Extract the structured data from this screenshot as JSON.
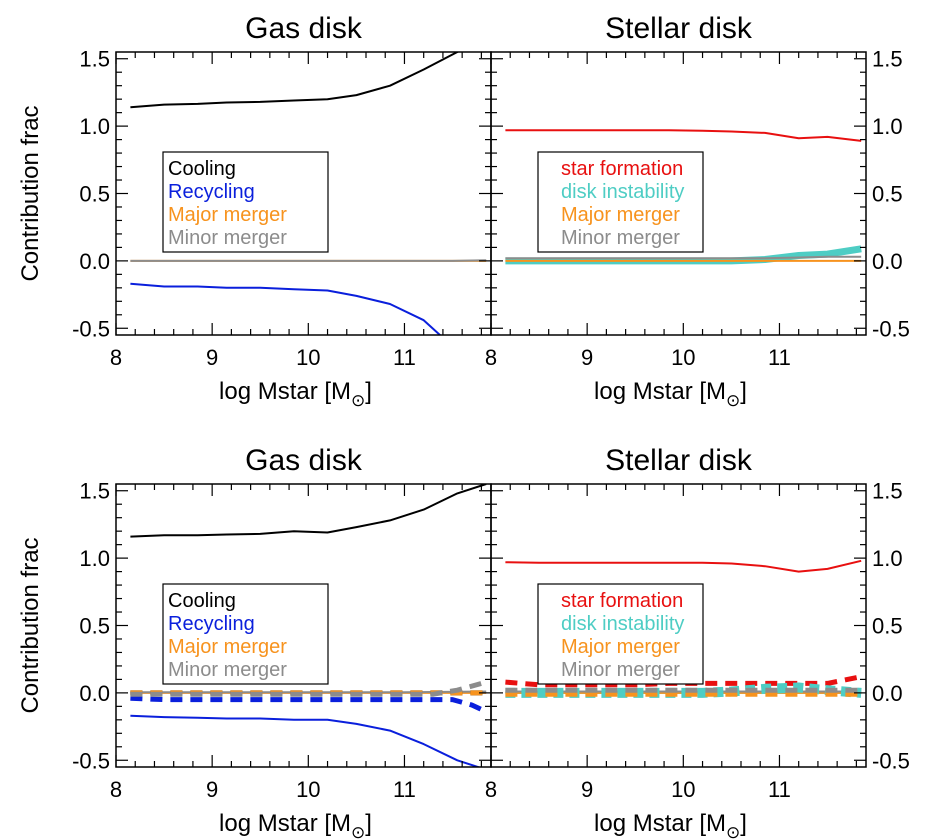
{
  "figure": {
    "ylabel": "Contribution frac",
    "xlabel": "log Mstar [M",
    "sun_symbol": "⊙",
    "bracket_close": "]"
  },
  "colors": {
    "Cooling": "#000000",
    "Recycling": "#0a1fdc",
    "Major merger": "#f7931e",
    "Minor merger": "#8c8c8c",
    "star formation": "#e81010",
    "disk instability": "#4ecdc4"
  },
  "chart_data": [
    {
      "type": "line",
      "title": "Gas disk",
      "xlabel": "log Mstar [M⊙]",
      "ylabel": "Contribution frac",
      "xlim": [
        8.0,
        11.9
      ],
      "ylim": [
        -0.55,
        1.55
      ],
      "x_ticks": [
        8,
        9,
        10,
        11
      ],
      "y_ticks": [
        "-0.5",
        "0.0",
        "0.5",
        "1.0",
        "1.5"
      ],
      "grid": false,
      "legend_position": "center-left",
      "legend": [
        "Cooling",
        "Recycling",
        "Major merger",
        "Minor merger"
      ],
      "series": [
        {
          "name": "Cooling",
          "style": "solid",
          "x": [
            8.15,
            8.5,
            8.85,
            9.15,
            9.5,
            9.85,
            10.2,
            10.5,
            10.85,
            11.2,
            11.55,
            11.85
          ],
          "y": [
            1.14,
            1.16,
            1.165,
            1.175,
            1.18,
            1.19,
            1.2,
            1.23,
            1.3,
            1.42,
            1.55,
            1.68
          ]
        },
        {
          "name": "Recycling",
          "style": "solid",
          "x": [
            8.15,
            8.5,
            8.85,
            9.15,
            9.5,
            9.85,
            10.2,
            10.5,
            10.85,
            11.2,
            11.4
          ],
          "y": [
            -0.17,
            -0.19,
            -0.19,
            -0.2,
            -0.2,
            -0.21,
            -0.22,
            -0.26,
            -0.32,
            -0.44,
            -0.57
          ]
        },
        {
          "name": "Major merger",
          "style": "solid",
          "x": [
            8.15,
            9.0,
            10.0,
            11.0,
            11.85
          ],
          "y": [
            0.0,
            0.0,
            0.0,
            0.0,
            0.0
          ]
        },
        {
          "name": "Minor merger",
          "style": "solid",
          "x": [
            8.15,
            9.0,
            10.0,
            11.0,
            11.5,
            11.85
          ],
          "y": [
            0.0,
            0.0,
            0.0,
            0.0,
            0.0,
            0.005
          ]
        }
      ]
    },
    {
      "type": "line",
      "title": "Stellar disk",
      "xlabel": "log Mstar [M⊙]",
      "xlim": [
        8.0,
        11.9
      ],
      "ylim": [
        -0.55,
        1.55
      ],
      "x_ticks": [
        8,
        9,
        10,
        11
      ],
      "y_ticks": [
        "-0.5",
        "0.0",
        "0.5",
        "1.0",
        "1.5"
      ],
      "grid": false,
      "legend_position": "center-left",
      "legend": [
        "star formation",
        "disk instability",
        "Major merger",
        "Minor merger"
      ],
      "series": [
        {
          "name": "star formation",
          "style": "solid",
          "x": [
            8.15,
            8.5,
            8.85,
            9.15,
            9.5,
            9.85,
            10.2,
            10.5,
            10.85,
            11.2,
            11.5,
            11.85
          ],
          "y": [
            0.97,
            0.97,
            0.97,
            0.97,
            0.97,
            0.97,
            0.965,
            0.96,
            0.95,
            0.91,
            0.92,
            0.89
          ]
        },
        {
          "name": "disk instability",
          "style": "solid",
          "x": [
            8.15,
            8.5,
            8.85,
            9.15,
            9.5,
            9.85,
            10.2,
            10.5,
            10.85,
            11.2,
            11.5,
            11.85
          ],
          "y": [
            0.0,
            0.0,
            0.0,
            0.0,
            0.0,
            0.0,
            0.0,
            0.0,
            0.01,
            0.04,
            0.05,
            0.09
          ]
        },
        {
          "name": "Major merger",
          "style": "solid",
          "x": [
            8.15,
            9.0,
            10.0,
            11.0,
            11.85
          ],
          "y": [
            0.0,
            0.0,
            0.0,
            0.0,
            0.0
          ]
        },
        {
          "name": "Minor merger",
          "style": "solid",
          "x": [
            8.15,
            8.5,
            8.85,
            9.15,
            9.5,
            9.85,
            10.2,
            10.5,
            10.85,
            11.2,
            11.5,
            11.85
          ],
          "y": [
            0.02,
            0.02,
            0.02,
            0.02,
            0.02,
            0.02,
            0.02,
            0.02,
            0.02,
            0.025,
            0.03,
            0.03
          ]
        }
      ]
    },
    {
      "type": "line",
      "title": "Gas disk",
      "xlabel": "log Mstar [M⊙]",
      "ylabel": "Contribution frac",
      "xlim": [
        8.0,
        11.9
      ],
      "ylim": [
        -0.55,
        1.55
      ],
      "x_ticks": [
        8,
        9,
        10,
        11
      ],
      "y_ticks": [
        "-0.5",
        "0.0",
        "0.5",
        "1.0",
        "1.5"
      ],
      "grid": false,
      "legend_position": "center-left",
      "legend": [
        "Cooling",
        "Recycling",
        "Major merger",
        "Minor merger"
      ],
      "series": [
        {
          "name": "Cooling",
          "style": "solid",
          "x": [
            8.15,
            8.5,
            8.85,
            9.15,
            9.5,
            9.85,
            10.2,
            10.5,
            10.85,
            11.2,
            11.55,
            11.85
          ],
          "y": [
            1.16,
            1.17,
            1.17,
            1.175,
            1.18,
            1.2,
            1.19,
            1.23,
            1.28,
            1.36,
            1.48,
            1.55
          ]
        },
        {
          "name": "Recycling",
          "style": "solid",
          "x": [
            8.15,
            8.5,
            8.85,
            9.15,
            9.5,
            9.85,
            10.2,
            10.5,
            10.85,
            11.2,
            11.55,
            11.85
          ],
          "y": [
            -0.17,
            -0.18,
            -0.185,
            -0.19,
            -0.19,
            -0.2,
            -0.2,
            -0.23,
            -0.28,
            -0.38,
            -0.5,
            -0.57
          ]
        },
        {
          "name": "Major merger",
          "style": "solid",
          "x": [
            8.15,
            9.0,
            10.0,
            11.0,
            11.85
          ],
          "y": [
            0.0,
            0.0,
            0.0,
            0.0,
            0.0
          ]
        },
        {
          "name": "Minor merger",
          "style": "solid",
          "x": [
            8.15,
            9.0,
            10.0,
            11.0,
            11.85
          ],
          "y": [
            0.005,
            0.005,
            0.005,
            0.005,
            0.01
          ]
        },
        {
          "name": "Cooling",
          "style": "dashed",
          "x": [
            8.15,
            9.0,
            10.0,
            11.0,
            11.85
          ],
          "y": [
            0.0,
            0.0,
            0.0,
            0.0,
            0.0
          ]
        },
        {
          "name": "Recycling",
          "style": "dashed",
          "x": [
            8.15,
            8.5,
            8.85,
            9.15,
            9.5,
            9.85,
            10.2,
            10.5,
            10.85,
            11.2,
            11.5,
            11.7,
            11.85
          ],
          "y": [
            -0.04,
            -0.05,
            -0.05,
            -0.05,
            -0.05,
            -0.05,
            -0.05,
            -0.05,
            -0.05,
            -0.05,
            -0.05,
            -0.09,
            -0.14
          ]
        },
        {
          "name": "Major merger",
          "style": "dashed",
          "x": [
            8.15,
            9.0,
            10.0,
            11.0,
            11.85
          ],
          "y": [
            0.0,
            0.0,
            0.0,
            0.0,
            0.0
          ]
        },
        {
          "name": "Minor merger",
          "style": "dashed",
          "x": [
            8.15,
            8.5,
            9.0,
            9.5,
            10.0,
            10.5,
            11.0,
            11.3,
            11.55,
            11.85
          ],
          "y": [
            -0.01,
            -0.01,
            -0.01,
            -0.01,
            -0.01,
            -0.01,
            -0.01,
            -0.01,
            0.02,
            0.08
          ]
        }
      ]
    },
    {
      "type": "line",
      "title": "Stellar disk",
      "xlabel": "log Mstar [M⊙]",
      "xlim": [
        8.0,
        11.9
      ],
      "ylim": [
        -0.55,
        1.55
      ],
      "x_ticks": [
        8,
        9,
        10,
        11
      ],
      "y_ticks": [
        "-0.5",
        "0.0",
        "0.5",
        "1.0",
        "1.5"
      ],
      "grid": false,
      "legend_position": "center-left",
      "legend": [
        "star formation",
        "disk instability",
        "Major merger",
        "Minor merger"
      ],
      "series": [
        {
          "name": "star formation",
          "style": "solid",
          "x": [
            8.15,
            8.5,
            8.85,
            9.15,
            9.5,
            9.85,
            10.2,
            10.5,
            10.85,
            11.2,
            11.5,
            11.85
          ],
          "y": [
            0.97,
            0.965,
            0.965,
            0.965,
            0.965,
            0.965,
            0.965,
            0.96,
            0.94,
            0.9,
            0.92,
            0.98
          ]
        },
        {
          "name": "disk instability",
          "style": "solid",
          "x": [
            8.15,
            9.0,
            10.0,
            11.0,
            11.85
          ],
          "y": [
            0.0,
            0.0,
            0.0,
            0.0,
            0.0
          ]
        },
        {
          "name": "Major merger",
          "style": "solid",
          "x": [
            8.15,
            9.0,
            10.0,
            11.0,
            11.85
          ],
          "y": [
            0.0,
            0.0,
            0.0,
            0.0,
            0.0
          ]
        },
        {
          "name": "Minor merger",
          "style": "solid",
          "x": [
            8.15,
            9.0,
            10.0,
            11.0,
            11.85
          ],
          "y": [
            0.01,
            0.01,
            0.01,
            0.01,
            0.01
          ]
        },
        {
          "name": "star formation",
          "style": "dashed",
          "x": [
            8.15,
            8.5,
            8.85,
            9.15,
            9.5,
            9.85,
            10.2,
            10.5,
            10.85,
            11.2,
            11.5,
            11.85
          ],
          "y": [
            0.08,
            0.06,
            0.06,
            0.06,
            0.06,
            0.07,
            0.07,
            0.07,
            0.07,
            0.07,
            0.07,
            0.12
          ]
        },
        {
          "name": "disk instability",
          "style": "dashed",
          "x": [
            8.15,
            8.5,
            8.85,
            9.15,
            9.5,
            9.85,
            10.2,
            10.5,
            10.85,
            11.2,
            11.5,
            11.85
          ],
          "y": [
            0.0,
            0.0,
            0.0,
            0.0,
            0.0,
            0.0,
            0.0,
            0.01,
            0.03,
            0.04,
            0.02,
            0.0
          ]
        },
        {
          "name": "Major merger",
          "style": "dashed",
          "x": [
            8.15,
            9.0,
            10.0,
            11.0,
            11.85
          ],
          "y": [
            -0.01,
            -0.01,
            -0.01,
            -0.01,
            -0.01
          ]
        },
        {
          "name": "Minor merger",
          "style": "dashed",
          "x": [
            8.15,
            9.0,
            10.0,
            11.0,
            11.85
          ],
          "y": [
            0.02,
            0.02,
            0.02,
            0.02,
            0.02
          ]
        }
      ]
    }
  ]
}
